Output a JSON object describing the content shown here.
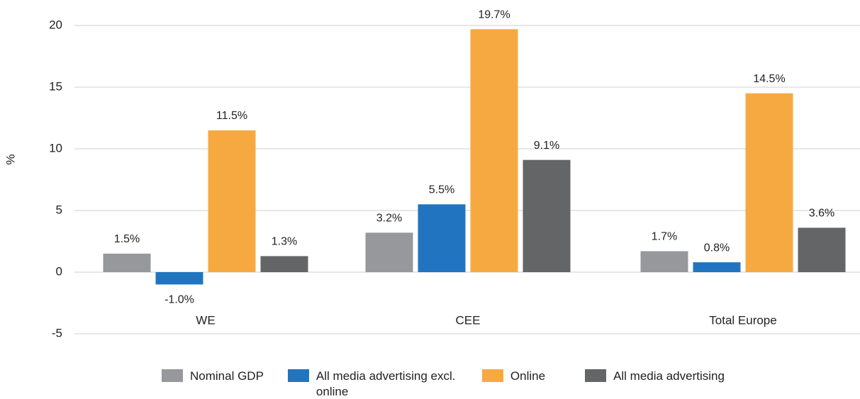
{
  "chart_data": {
    "type": "bar",
    "y_label": "%",
    "categories": [
      "WE",
      "CEE",
      "Total Europe"
    ],
    "series": [
      {
        "name": "Nominal GDP",
        "color": "#97989b",
        "values": [
          1.5,
          3.2,
          1.7
        ],
        "value_labels": [
          "1.5%",
          "3.2%",
          "1.7%"
        ]
      },
      {
        "name": "All media advertising excl. online",
        "color": "#2175c0",
        "values": [
          -1.0,
          5.5,
          0.8
        ],
        "value_labels": [
          "-1.0%",
          "5.5%",
          "0.8%"
        ]
      },
      {
        "name": "Online",
        "color": "#f7a941",
        "values": [
          11.5,
          19.7,
          14.5
        ],
        "value_labels": [
          "11.5%",
          "19.7%",
          "14.5%"
        ]
      },
      {
        "name": "All media advertising",
        "color": "#646566",
        "values": [
          1.3,
          9.1,
          3.6
        ],
        "value_labels": [
          "1.3%",
          "9.1%",
          "3.6%"
        ]
      }
    ],
    "ylim": [
      -5,
      20
    ],
    "yticks": [
      -5,
      0,
      5,
      10,
      15,
      20
    ],
    "grid": true
  }
}
